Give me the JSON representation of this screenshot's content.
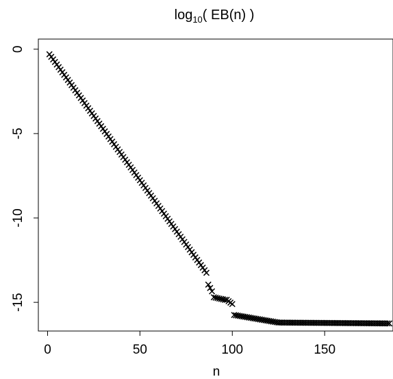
{
  "chart_data": {
    "type": "scatter",
    "title": {
      "base": "log",
      "subscript": "10",
      "rest": "( EB(n) )"
    },
    "xlabel": "n",
    "ylabel": "",
    "xlim": [
      -5,
      187
    ],
    "ylim": [
      -16.7,
      0.6
    ],
    "xticks": [
      0,
      50,
      100,
      150
    ],
    "xtick_labels": [
      "0",
      "50",
      "100",
      "150"
    ],
    "yticks": [
      0,
      -5,
      -10,
      -15
    ],
    "ytick_labels": [
      "0",
      "-5",
      "-10",
      "-15"
    ],
    "grid": false,
    "marker": "x",
    "marker_color": "#000000",
    "segments": [
      {
        "x_start": 1,
        "x_end": 86,
        "y_start": -0.3,
        "y_end": -13.25
      },
      {
        "x_start": 87,
        "x_end": 89,
        "y_start": -13.95,
        "y_end": -14.35
      },
      {
        "x_start": 90,
        "x_end": 96,
        "y_start": -14.7,
        "y_end": -14.85
      },
      {
        "x_start": 97,
        "x_end": 100,
        "y_start": -14.85,
        "y_end": -15.1
      },
      {
        "x_start": 101,
        "x_end": 125,
        "y_start": -15.75,
        "y_end": -16.2
      },
      {
        "x_start": 126,
        "x_end": 185,
        "y_start": -16.2,
        "y_end": -16.25
      }
    ]
  }
}
